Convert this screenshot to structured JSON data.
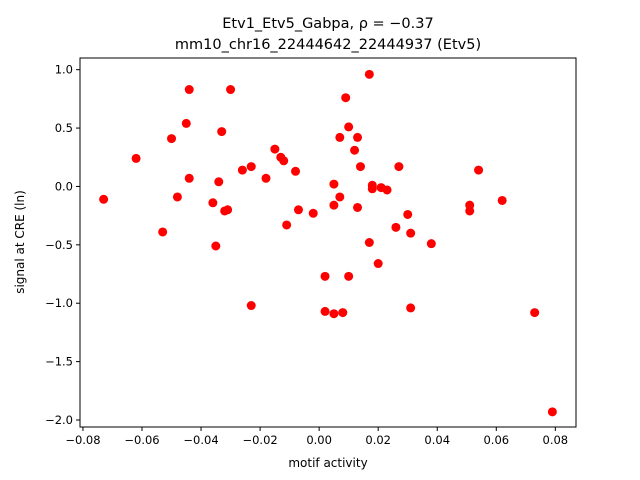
{
  "chart_data": {
    "type": "scatter",
    "title_line1": "Etv1_Etv5_Gabpa, ρ = −0.37",
    "title_line2": "mm10_chr16_22444642_22444937 (Etv5)",
    "xlabel": "motif activity",
    "ylabel": "signal at CRE (ln)",
    "xlim": [
      -0.081,
      0.087
    ],
    "ylim": [
      -2.06,
      1.1
    ],
    "xticks": [
      -0.08,
      -0.06,
      -0.04,
      -0.02,
      0.0,
      0.02,
      0.04,
      0.06,
      0.08
    ],
    "xtick_labels": [
      "−0.08",
      "−0.06",
      "−0.04",
      "−0.02",
      "0.00",
      "0.02",
      "0.04",
      "0.06",
      "0.08"
    ],
    "yticks": [
      1.0,
      0.5,
      0.0,
      -0.5,
      -1.0,
      -1.5,
      -2.0
    ],
    "ytick_labels": [
      "1.0",
      "0.5",
      "0.0",
      "−0.5",
      "−1.0",
      "−1.5",
      "−2.0"
    ],
    "grid": false,
    "marker_color": "#ff0000",
    "points": [
      [
        -0.073,
        -0.11
      ],
      [
        -0.062,
        0.24
      ],
      [
        -0.053,
        -0.39
      ],
      [
        -0.05,
        0.41
      ],
      [
        -0.048,
        -0.09
      ],
      [
        -0.045,
        0.54
      ],
      [
        -0.044,
        0.83
      ],
      [
        -0.044,
        0.07
      ],
      [
        -0.036,
        -0.14
      ],
      [
        -0.035,
        -0.51
      ],
      [
        -0.034,
        0.04
      ],
      [
        -0.033,
        0.47
      ],
      [
        -0.032,
        -0.21
      ],
      [
        -0.031,
        -0.2
      ],
      [
        -0.03,
        0.83
      ],
      [
        -0.026,
        0.14
      ],
      [
        -0.023,
        0.17
      ],
      [
        -0.023,
        -1.02
      ],
      [
        -0.018,
        0.07
      ],
      [
        -0.015,
        0.32
      ],
      [
        -0.013,
        0.25
      ],
      [
        -0.012,
        0.22
      ],
      [
        -0.011,
        -0.33
      ],
      [
        -0.008,
        0.13
      ],
      [
        -0.007,
        -0.2
      ],
      [
        -0.002,
        -0.23
      ],
      [
        0.002,
        -0.77
      ],
      [
        0.002,
        -1.07
      ],
      [
        0.005,
        0.02
      ],
      [
        0.005,
        -0.16
      ],
      [
        0.005,
        -1.09
      ],
      [
        0.007,
        0.42
      ],
      [
        0.007,
        -0.09
      ],
      [
        0.008,
        -1.08
      ],
      [
        0.009,
        0.76
      ],
      [
        0.01,
        0.51
      ],
      [
        0.01,
        -0.77
      ],
      [
        0.012,
        0.31
      ],
      [
        0.013,
        0.42
      ],
      [
        0.013,
        -0.18
      ],
      [
        0.014,
        0.17
      ],
      [
        0.017,
        0.96
      ],
      [
        0.017,
        -0.48
      ],
      [
        0.018,
        0.01
      ],
      [
        0.018,
        -0.02
      ],
      [
        0.02,
        -0.66
      ],
      [
        0.021,
        -0.01
      ],
      [
        0.023,
        -0.03
      ],
      [
        0.026,
        -0.35
      ],
      [
        0.027,
        0.17
      ],
      [
        0.03,
        -0.24
      ],
      [
        0.031,
        -0.4
      ],
      [
        0.031,
        -1.04
      ],
      [
        0.038,
        -0.49
      ],
      [
        0.051,
        -0.16
      ],
      [
        0.051,
        -0.21
      ],
      [
        0.054,
        0.14
      ],
      [
        0.062,
        -0.12
      ],
      [
        0.073,
        -1.08
      ],
      [
        0.079,
        -1.93
      ]
    ]
  }
}
